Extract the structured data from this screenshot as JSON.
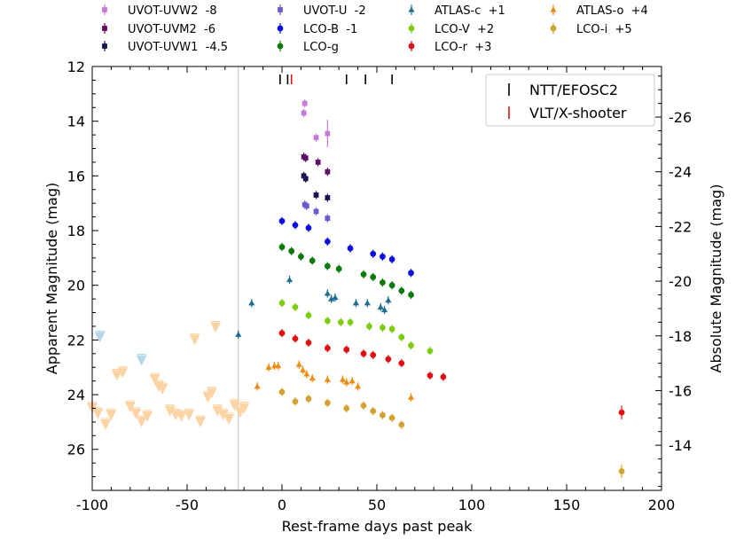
{
  "chart_data": {
    "type": "scatter",
    "title": "",
    "xlabel": "Rest-frame days past peak",
    "ylabel": "Apparent Magnitude (mag)",
    "y2label": "Absolute Magnitude (mag)",
    "xlim": [
      -100,
      200
    ],
    "ylim": [
      27.5,
      12
    ],
    "y2lim": [
      -12.35,
      -27.85
    ],
    "xticks": [
      -100,
      -50,
      0,
      50,
      100,
      150,
      200
    ],
    "yticks": [
      12,
      14,
      16,
      18,
      20,
      22,
      24,
      26
    ],
    "y2ticks": [
      -26,
      -24,
      -22,
      -20,
      -18,
      -16,
      -14
    ],
    "grid": false,
    "legend_position": "top (above plot)",
    "reference_line_x": -23,
    "series": [
      {
        "name": "UVOT-UVW2  -8",
        "color": "#c77bd9",
        "marker": "square",
        "points": [
          [
            11.5,
            13.7
          ],
          [
            12,
            13.35
          ],
          [
            18,
            14.6
          ],
          [
            24,
            14.45
          ]
        ]
      },
      {
        "name": "UVOT-UVM2  -6",
        "color": "#5e1066",
        "marker": "square",
        "points": [
          [
            11.5,
            15.3
          ],
          [
            12.5,
            15.35
          ],
          [
            19,
            15.5
          ],
          [
            24,
            15.85
          ]
        ]
      },
      {
        "name": "UVOT-UVW1  -4.5",
        "color": "#161452",
        "marker": "square",
        "points": [
          [
            11.5,
            16.0
          ],
          [
            12.5,
            16.1
          ],
          [
            18,
            16.7
          ],
          [
            24,
            16.8
          ]
        ]
      },
      {
        "name": "UVOT-U  -2",
        "color": "#6a5acd",
        "marker": "square",
        "points": [
          [
            12,
            17.05
          ],
          [
            13,
            17.1
          ],
          [
            18,
            17.3
          ],
          [
            24,
            17.55
          ]
        ]
      },
      {
        "name": "LCO-B  -1",
        "color": "#0a10e0",
        "marker": "circle",
        "points": [
          [
            0,
            17.65
          ],
          [
            7,
            17.8
          ],
          [
            14,
            17.9
          ],
          [
            24,
            18.4
          ],
          [
            36,
            18.65
          ],
          [
            48,
            18.85
          ],
          [
            53,
            18.95
          ],
          [
            58,
            19.05
          ],
          [
            68,
            19.55
          ]
        ]
      },
      {
        "name": "LCO-g",
        "color": "#0a7a0a",
        "marker": "circle",
        "points": [
          [
            0,
            18.6
          ],
          [
            5,
            18.75
          ],
          [
            10,
            18.95
          ],
          [
            16,
            19.1
          ],
          [
            24,
            19.3
          ],
          [
            30,
            19.4
          ],
          [
            43,
            19.6
          ],
          [
            48,
            19.7
          ],
          [
            53,
            19.9
          ],
          [
            58,
            20.0
          ],
          [
            63,
            20.2
          ],
          [
            68,
            20.35
          ]
        ]
      },
      {
        "name": "ATLAS-c  +1",
        "color": "#1e6e92",
        "marker": "triangle",
        "points": [
          [
            -23,
            21.8
          ],
          [
            -16,
            20.65
          ],
          [
            4,
            19.8
          ],
          [
            24,
            20.3
          ],
          [
            26,
            20.5
          ],
          [
            28,
            20.45
          ],
          [
            39,
            20.65
          ],
          [
            45,
            20.65
          ],
          [
            52,
            20.8
          ],
          [
            54,
            20.9
          ],
          [
            56,
            20.55
          ]
        ]
      },
      {
        "name": "LCO-V  +2",
        "color": "#7ccd10",
        "marker": "circle",
        "points": [
          [
            0,
            20.65
          ],
          [
            7,
            20.8
          ],
          [
            14,
            21.1
          ],
          [
            24,
            21.3
          ],
          [
            31,
            21.35
          ],
          [
            36,
            21.35
          ],
          [
            46,
            21.5
          ],
          [
            53,
            21.55
          ],
          [
            58,
            21.6
          ],
          [
            63,
            21.9
          ],
          [
            68,
            22.2
          ],
          [
            78,
            22.4
          ]
        ]
      },
      {
        "name": "LCO-r  +3",
        "color": "#e01010",
        "marker": "circle",
        "points": [
          [
            0,
            21.75
          ],
          [
            7,
            21.95
          ],
          [
            14,
            22.1
          ],
          [
            24,
            22.3
          ],
          [
            34,
            22.35
          ],
          [
            43,
            22.5
          ],
          [
            48,
            22.55
          ],
          [
            56,
            22.7
          ],
          [
            63,
            22.85
          ],
          [
            78,
            23.3
          ],
          [
            85,
            23.35
          ],
          [
            179,
            24.65
          ]
        ]
      },
      {
        "name": "ATLAS-o  +4",
        "color": "#f08c10",
        "marker": "triangle",
        "points": [
          [
            -13,
            23.7
          ],
          [
            -7,
            23.0
          ],
          [
            -4,
            22.95
          ],
          [
            -2,
            22.95
          ],
          [
            9,
            22.9
          ],
          [
            11,
            23.1
          ],
          [
            13,
            23.25
          ],
          [
            16,
            23.4
          ],
          [
            24,
            23.45
          ],
          [
            32,
            23.45
          ],
          [
            34,
            23.55
          ],
          [
            37,
            23.5
          ],
          [
            40,
            23.7
          ],
          [
            68,
            24.1
          ]
        ]
      },
      {
        "name": "LCO-i  +5",
        "color": "#d4a230",
        "marker": "circle",
        "points": [
          [
            0,
            23.9
          ],
          [
            7,
            24.25
          ],
          [
            14,
            24.15
          ],
          [
            24,
            24.3
          ],
          [
            34,
            24.5
          ],
          [
            43,
            24.4
          ],
          [
            48,
            24.6
          ],
          [
            53,
            24.75
          ],
          [
            58,
            24.85
          ],
          [
            63,
            25.1
          ],
          [
            179,
            26.8
          ]
        ]
      },
      {
        "name": "upper limits (ATLAS-o)",
        "color": "#fbd3a4",
        "marker": "triangle-down",
        "points": [
          [
            -100,
            24.5
          ],
          [
            -97,
            24.7
          ],
          [
            -93,
            25.1
          ],
          [
            -90,
            24.75
          ],
          [
            -87,
            23.3
          ],
          [
            -84,
            23.2
          ],
          [
            -80,
            24.45
          ],
          [
            -77,
            24.7
          ],
          [
            -74,
            25.0
          ],
          [
            -71,
            24.8
          ],
          [
            -67,
            23.45
          ],
          [
            -65,
            23.7
          ],
          [
            -63,
            23.8
          ],
          [
            -59,
            24.6
          ],
          [
            -56,
            24.75
          ],
          [
            -53,
            24.8
          ],
          [
            -49,
            24.75
          ],
          [
            -46,
            22.0
          ],
          [
            -43,
            25.0
          ],
          [
            -39,
            24.1
          ],
          [
            -37,
            23.95
          ],
          [
            -34,
            24.6
          ],
          [
            -35,
            21.55
          ],
          [
            -31,
            24.75
          ],
          [
            -28,
            24.9
          ],
          [
            -25,
            24.4
          ],
          [
            -22,
            24.65
          ],
          [
            -20,
            24.5
          ]
        ]
      },
      {
        "name": "upper limits (ATLAS-c)",
        "color": "#b5d7e8",
        "marker": "triangle-down",
        "points": [
          [
            -96,
            21.9
          ],
          [
            -74,
            22.75
          ]
        ]
      }
    ],
    "spectra_legend": [
      {
        "label": "NTT/EFOSC2",
        "color": "#000000"
      },
      {
        "label": "VLT/X-shooter",
        "color": "#e01010"
      }
    ],
    "spectra_epochs": [
      {
        "day": -1,
        "instrument": "NTT/EFOSC2"
      },
      {
        "day": 3,
        "instrument": "NTT/EFOSC2"
      },
      {
        "day": 5,
        "instrument": "VLT/X-shooter"
      },
      {
        "day": 34,
        "instrument": "NTT/EFOSC2"
      },
      {
        "day": 44,
        "instrument": "NTT/EFOSC2"
      },
      {
        "day": 58,
        "instrument": "NTT/EFOSC2"
      }
    ]
  }
}
